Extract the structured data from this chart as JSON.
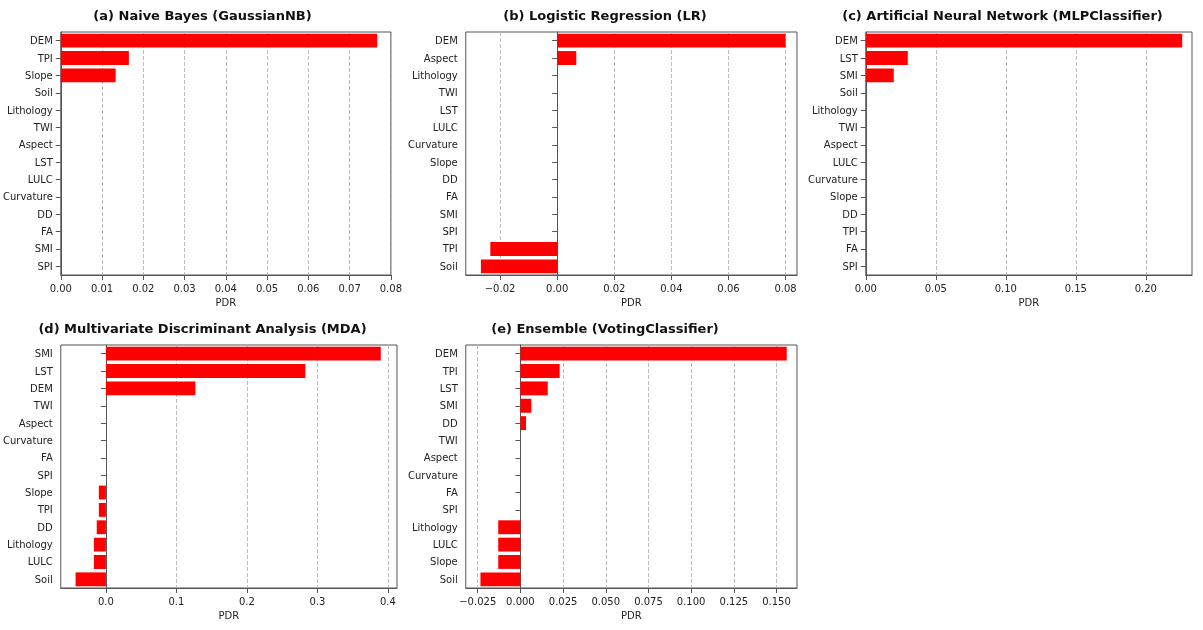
{
  "chart_data": [
    {
      "type": "bar",
      "orientation": "horizontal",
      "title": "(a) Naive Bayes (GaussianNB)",
      "xlabel": "PDR",
      "categories": [
        "DEM",
        "TPI",
        "Slope",
        "Soil",
        "Lithology",
        "TWI",
        "Aspect",
        "LST",
        "LULC",
        "Curvature",
        "DD",
        "FA",
        "SMI",
        "SPI"
      ],
      "values": [
        0.0767,
        0.0165,
        0.0133,
        0,
        0,
        0,
        0,
        0,
        0,
        0,
        0,
        0,
        0,
        0
      ],
      "color": "#ff0000",
      "xlim": [
        0,
        0.08
      ],
      "xticks": [
        {
          "value": 0,
          "label": "0.00"
        },
        {
          "value": 0.01,
          "label": "0.01"
        },
        {
          "value": 0.02,
          "label": "0.02"
        },
        {
          "value": 0.03,
          "label": "0.03"
        },
        {
          "value": 0.04,
          "label": "0.04"
        },
        {
          "value": 0.05,
          "label": "0.05"
        },
        {
          "value": 0.06,
          "label": "0.06"
        },
        {
          "value": 0.07,
          "label": "0.07"
        },
        {
          "value": 0.08,
          "label": "0.08"
        }
      ],
      "grid": "x"
    },
    {
      "type": "bar",
      "orientation": "horizontal",
      "title": "(b) Logistic Regression (LR)",
      "xlabel": "PDR",
      "categories": [
        "DEM",
        "Aspect",
        "Lithology",
        "TWI",
        "LST",
        "LULC",
        "Curvature",
        "Slope",
        "DD",
        "FA",
        "SMI",
        "SPI",
        "TPI",
        "Soil"
      ],
      "values": [
        0.08,
        0.0067,
        0,
        0,
        0,
        0,
        0,
        0,
        0,
        0,
        0,
        0,
        -0.0234,
        -0.0267
      ],
      "color": "#ff0000",
      "xlim": [
        -0.032,
        0.084
      ],
      "xticks": [
        {
          "value": -0.02,
          "label": "−0.02"
        },
        {
          "value": 0,
          "label": "0.00"
        },
        {
          "value": 0.02,
          "label": "0.02"
        },
        {
          "value": 0.04,
          "label": "0.04"
        },
        {
          "value": 0.06,
          "label": "0.06"
        },
        {
          "value": 0.08,
          "label": "0.08"
        }
      ],
      "grid": "x"
    },
    {
      "type": "bar",
      "orientation": "horizontal",
      "title": "(c) Artificial Neural Network (MLPClassifier)",
      "xlabel": "PDR",
      "categories": [
        "DEM",
        "LST",
        "SMI",
        "Soil",
        "Lithology",
        "TWI",
        "Aspect",
        "LULC",
        "Curvature",
        "Slope",
        "DD",
        "TPI",
        "FA",
        "SPI"
      ],
      "values": [
        0.226,
        0.03,
        0.02,
        0,
        0,
        0,
        0,
        0,
        0,
        0,
        0,
        0,
        0,
        0
      ],
      "color": "#ff0000",
      "xlim": [
        0,
        0.233
      ],
      "xticks": [
        {
          "value": 0,
          "label": "0.00"
        },
        {
          "value": 0.05,
          "label": "0.05"
        },
        {
          "value": 0.1,
          "label": "0.10"
        },
        {
          "value": 0.15,
          "label": "0.15"
        },
        {
          "value": 0.2,
          "label": "0.20"
        }
      ],
      "grid": "x"
    },
    {
      "type": "bar",
      "orientation": "horizontal",
      "title": "(d) Multivariate Discriminant Analysis (MDA)",
      "xlabel": "PDR",
      "categories": [
        "SMI",
        "LST",
        "DEM",
        "TWI",
        "Aspect",
        "Curvature",
        "FA",
        "SPI",
        "Slope",
        "TPI",
        "DD",
        "Lithology",
        "LULC",
        "Soil"
      ],
      "values": [
        0.39,
        0.283,
        0.127,
        0,
        0,
        0,
        0,
        0,
        -0.01,
        -0.01,
        -0.013,
        -0.017,
        -0.017,
        -0.043
      ],
      "color": "#ff0000",
      "xlim": [
        -0.064,
        0.413
      ],
      "xticks": [
        {
          "value": 0,
          "label": "0.0"
        },
        {
          "value": 0.1,
          "label": "0.1"
        },
        {
          "value": 0.2,
          "label": "0.2"
        },
        {
          "value": 0.3,
          "label": "0.3"
        },
        {
          "value": 0.4,
          "label": "0.4"
        }
      ],
      "grid": "x"
    },
    {
      "type": "bar",
      "orientation": "horizontal",
      "title": "(e) Ensemble (VotingClassifier)",
      "xlabel": "PDR",
      "categories": [
        "DEM",
        "TPI",
        "LST",
        "SMI",
        "DD",
        "TWI",
        "Aspect",
        "Curvature",
        "FA",
        "SPI",
        "Lithology",
        "LULC",
        "Slope",
        "Soil"
      ],
      "values": [
        0.156,
        0.023,
        0.016,
        0.0064,
        0.0033,
        0,
        0,
        0,
        0,
        0,
        -0.013,
        -0.013,
        -0.013,
        -0.0234
      ],
      "color": "#ff0000",
      "xlim": [
        -0.032,
        0.162
      ],
      "xticks": [
        {
          "value": -0.025,
          "label": "−0.025"
        },
        {
          "value": 0,
          "label": "0.000"
        },
        {
          "value": 0.025,
          "label": "0.025"
        },
        {
          "value": 0.05,
          "label": "0.050"
        },
        {
          "value": 0.075,
          "label": "0.075"
        },
        {
          "value": 0.1,
          "label": "0.100"
        },
        {
          "value": 0.125,
          "label": "0.125"
        },
        {
          "value": 0.15,
          "label": "0.150"
        }
      ],
      "grid": "x"
    }
  ]
}
